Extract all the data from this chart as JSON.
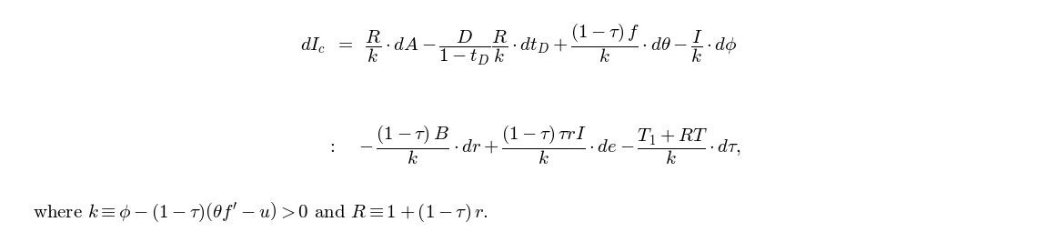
{
  "line1": "dI_c \\;\\;=\\;\\; \\dfrac{R}{k} \\cdot dA - \\dfrac{D}{1-t_D}\\dfrac{R}{k} \\cdot dt_D + \\dfrac{(1-\\tau)\\,f}{k} \\cdot d\\theta - \\dfrac{I}{k} \\cdot d\\phi",
  "line2": ":\\; -\\dfrac{(1-\\tau)\\,B}{k} \\cdot dr + \\dfrac{(1-\\tau)\\,\\tau r I}{k} \\cdot de - \\dfrac{T_1 + RT}{k} \\cdot d\\tau,",
  "line3": "\\text{where } k \\equiv \\phi - (1-\\tau)\\left(\\theta f' - u\\right) > 0 \\text{ and } R \\equiv 1 + (1-\\tau)\\,r.",
  "bg_color": "#ffffff",
  "text_color": "#000000",
  "fontsize": 15
}
